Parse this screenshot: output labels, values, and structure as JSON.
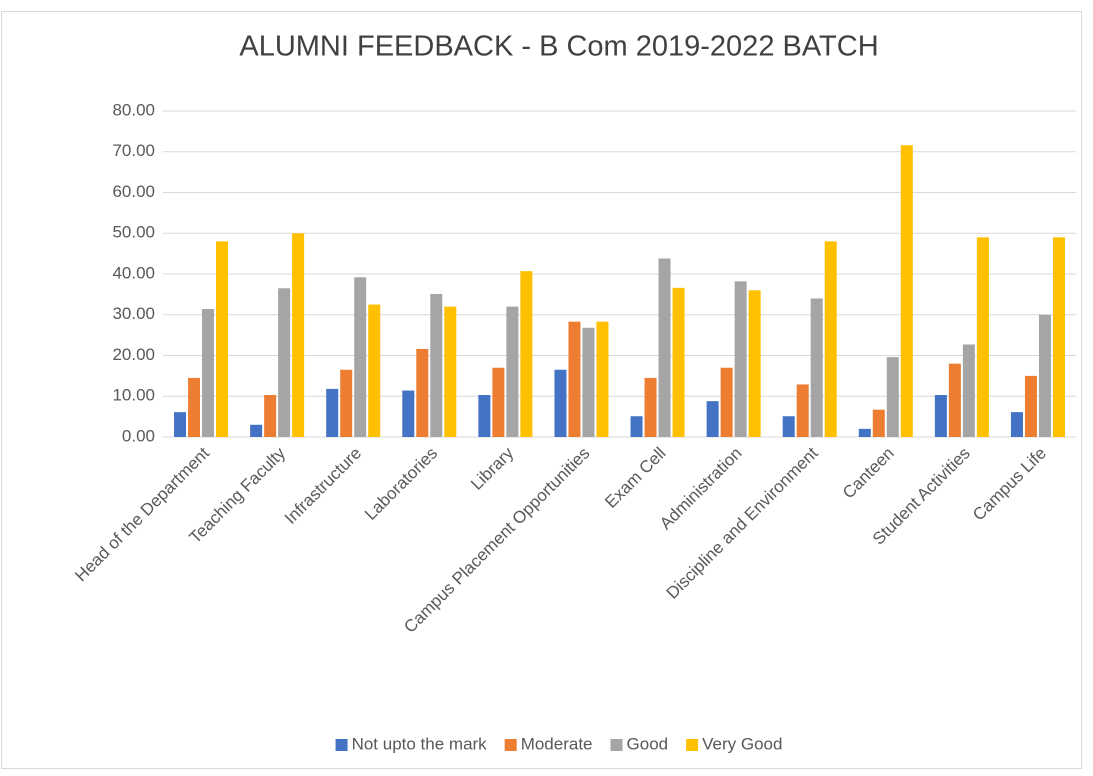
{
  "chart_data": {
    "type": "bar",
    "title": "ALUMNI FEEDBACK - B Com 2019-2022 BATCH",
    "categories": [
      "Head of the Department",
      "Teaching Faculty",
      "Infrastructure",
      "Laboratories",
      "Library",
      "Campus Placement Opportunities",
      "Exam Cell",
      "Administration",
      "Discipline and Environment",
      "Canteen",
      "Student Activities",
      "Campus Life"
    ],
    "series": [
      {
        "name": "Not upto the mark",
        "color": "#4472c4",
        "values": [
          6.1,
          3.0,
          11.8,
          11.4,
          10.3,
          16.5,
          5.1,
          8.8,
          5.1,
          2.0,
          10.3,
          6.1
        ]
      },
      {
        "name": "Moderate",
        "color": "#ed7d31",
        "values": [
          14.5,
          10.3,
          16.5,
          21.6,
          17.0,
          28.3,
          14.5,
          17.0,
          12.9,
          6.7,
          18.0,
          15.0
        ]
      },
      {
        "name": "Good",
        "color": "#a5a5a5",
        "values": [
          31.4,
          36.5,
          39.2,
          35.1,
          32.0,
          26.8,
          43.8,
          38.2,
          34.0,
          19.6,
          22.7,
          30.0
        ]
      },
      {
        "name": "Very Good",
        "color": "#ffc000",
        "values": [
          48.0,
          50.0,
          32.5,
          32.0,
          40.7,
          28.3,
          36.6,
          36.0,
          48.0,
          71.6,
          49.0,
          49.0
        ]
      }
    ],
    "ylim": [
      0,
      80
    ],
    "yticks": [
      {
        "value": 0,
        "label": "0.00"
      },
      {
        "value": 10,
        "label": "10.00"
      },
      {
        "value": 20,
        "label": "20.00"
      },
      {
        "value": 30,
        "label": "30.00"
      },
      {
        "value": 40,
        "label": "40.00"
      },
      {
        "value": 50,
        "label": "50.00"
      },
      {
        "value": 60,
        "label": "60.00"
      },
      {
        "value": 70,
        "label": "70.00"
      },
      {
        "value": 80,
        "label": "80.00"
      }
    ],
    "grid": true,
    "legend": "bottom"
  }
}
